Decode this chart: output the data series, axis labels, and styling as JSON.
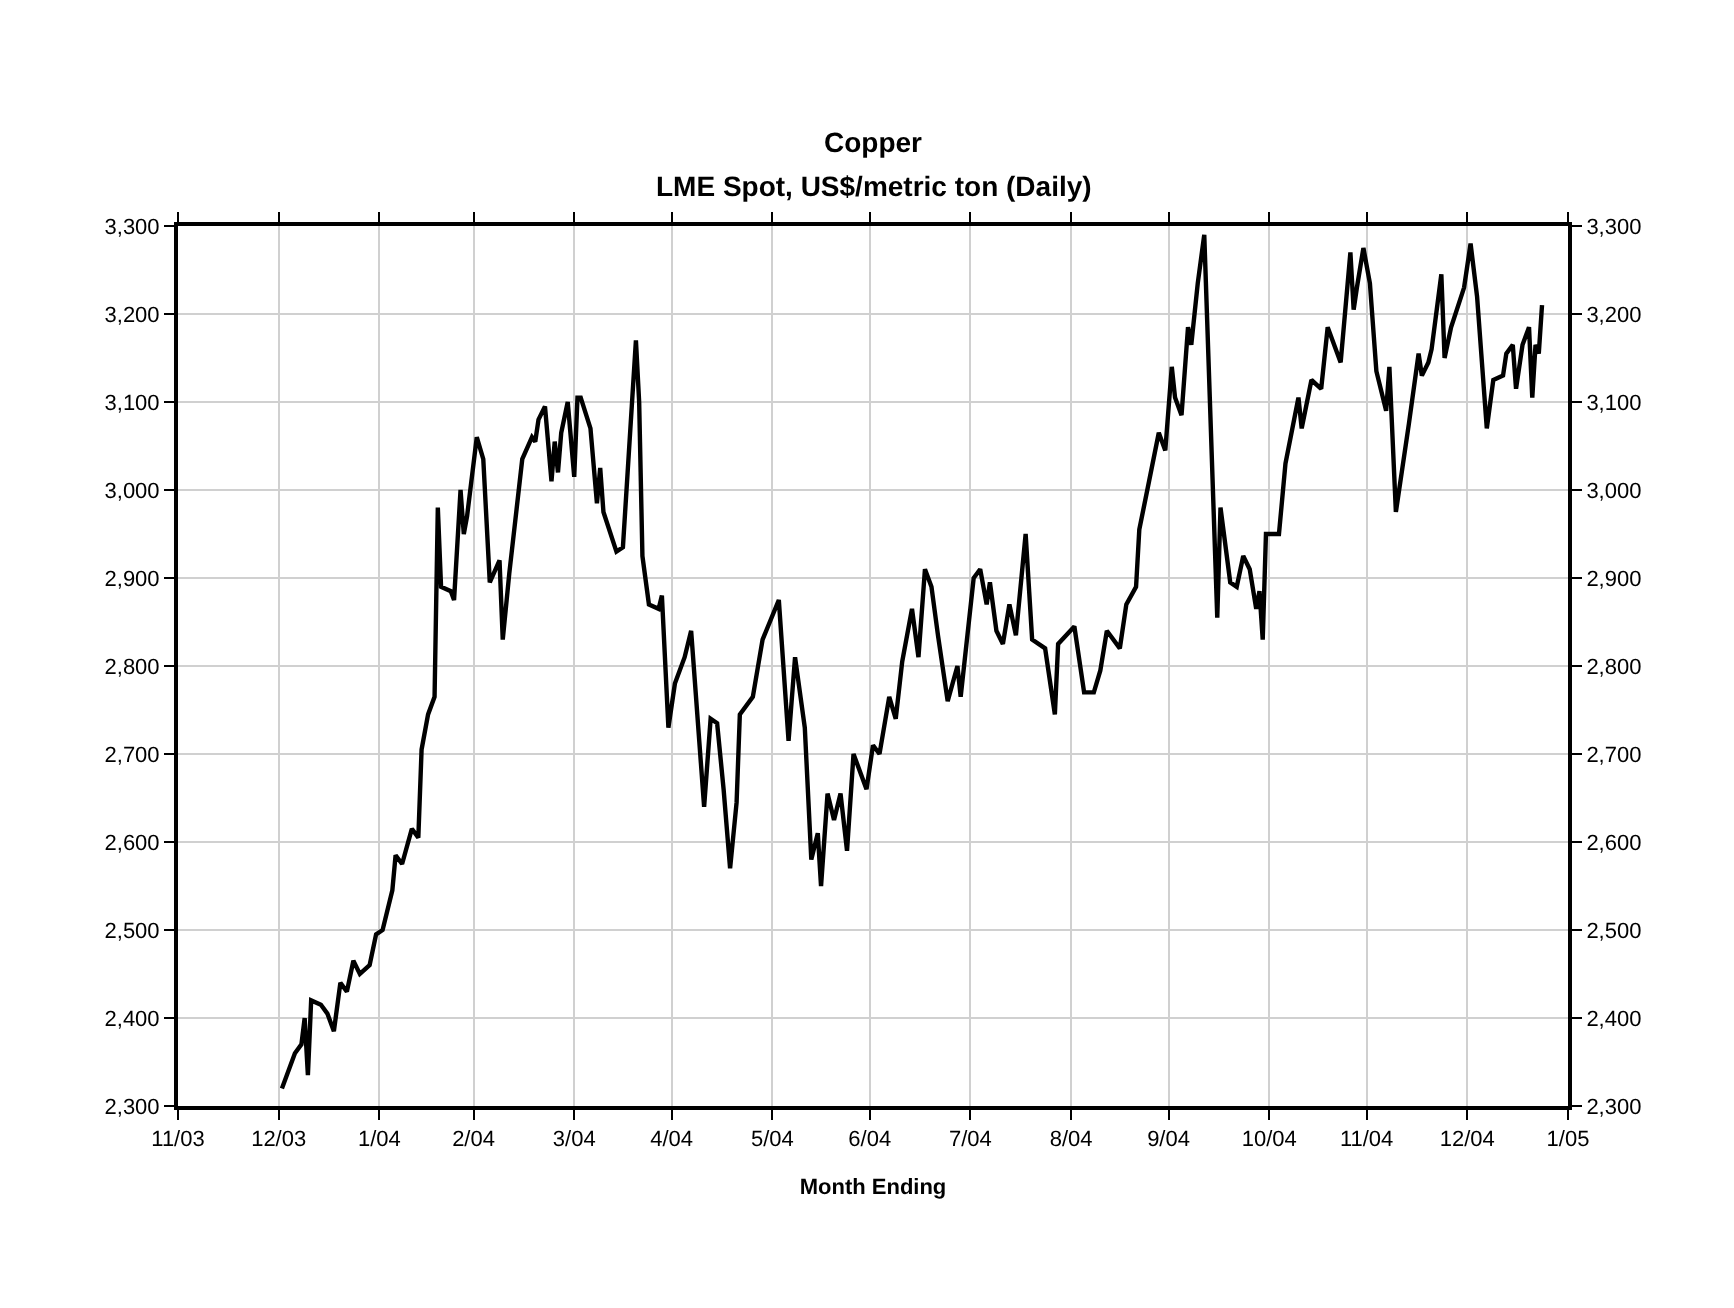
{
  "chart_data": {
    "type": "line",
    "title": "Copper",
    "subtitle": "LME Spot, US$/metric ton (Daily)",
    "xlabel": "Month Ending",
    "x": [
      "2004-01-01",
      "2004-01-05",
      "2004-01-07",
      "2004-01-08",
      "2004-01-09",
      "2004-01-10",
      "2004-01-13",
      "2004-01-15",
      "2004-01-17",
      "2004-01-19",
      "2004-01-21",
      "2004-01-23",
      "2004-01-25",
      "2004-01-28",
      "2004-01-30",
      "2004-02-01",
      "2004-02-04",
      "2004-02-05",
      "2004-02-07",
      "2004-02-10",
      "2004-02-12",
      "2004-02-13",
      "2004-02-15",
      "2004-02-17",
      "2004-02-18",
      "2004-02-19",
      "2004-02-22",
      "2004-02-23",
      "2004-02-25",
      "2004-02-26",
      "2004-02-27",
      "2004-03-01",
      "2004-03-03",
      "2004-03-05",
      "2004-03-08",
      "2004-03-09",
      "2004-03-11",
      "2004-03-15",
      "2004-03-18",
      "2004-03-19",
      "2004-03-20",
      "2004-03-22",
      "2004-03-24",
      "2004-03-25",
      "2004-03-26",
      "2004-03-27",
      "2004-03-29",
      "2004-03-31",
      "2004-04-01",
      "2004-04-02",
      "2004-04-05",
      "2004-04-07",
      "2004-04-08",
      "2004-04-09",
      "2004-04-13",
      "2004-04-15",
      "2004-04-19",
      "2004-04-20",
      "2004-04-21",
      "2004-04-23",
      "2004-04-26",
      "2004-04-27",
      "2004-04-29",
      "2004-05-01",
      "2004-05-04",
      "2004-05-06",
      "2004-05-10",
      "2004-05-12",
      "2004-05-14",
      "2004-05-16",
      "2004-05-18",
      "2004-05-20",
      "2004-05-21",
      "2004-05-25",
      "2004-05-28",
      "2004-06-02",
      "2004-06-05",
      "2004-06-07",
      "2004-06-10",
      "2004-06-12",
      "2004-06-14",
      "2004-06-15",
      "2004-06-17",
      "2004-06-19",
      "2004-06-21",
      "2004-06-23",
      "2004-06-25",
      "2004-06-29",
      "2004-07-01",
      "2004-07-03",
      "2004-07-06",
      "2004-07-08",
      "2004-07-10",
      "2004-07-13",
      "2004-07-15",
      "2004-07-17",
      "2004-07-19",
      "2004-07-21",
      "2004-07-24",
      "2004-07-27",
      "2004-07-28",
      "2004-08-01",
      "2004-08-03",
      "2004-08-05",
      "2004-08-06",
      "2004-08-08",
      "2004-08-10",
      "2004-08-12",
      "2004-08-14",
      "2004-08-17",
      "2004-08-19",
      "2004-08-23",
      "2004-08-26",
      "2004-08-27",
      "2004-09-01",
      "2004-09-04",
      "2004-09-07",
      "2004-09-09",
      "2004-09-11",
      "2004-09-15",
      "2004-09-17",
      "2004-09-20",
      "2004-09-21",
      "2004-09-24",
      "2004-09-27",
      "2004-09-29",
      "2004-10-01",
      "2004-10-02",
      "2004-10-04",
      "2004-10-06",
      "2004-10-07",
      "2004-10-09",
      "2004-10-11",
      "2004-10-15",
      "2004-10-16",
      "2004-10-19",
      "2004-10-21",
      "2004-10-23",
      "2004-10-25",
      "2004-10-27",
      "2004-10-28",
      "2004-10-29",
      "2004-10-30",
      "2004-11-03",
      "2004-11-05",
      "2004-11-09",
      "2004-11-10",
      "2004-11-13",
      "2004-11-16",
      "2004-11-18",
      "2004-11-22",
      "2004-11-25",
      "2004-11-26",
      "2004-11-27",
      "2004-11-29",
      "2004-12-01",
      "2004-12-03",
      "2004-12-06",
      "2004-12-07",
      "2004-12-09",
      "2004-12-13",
      "2004-12-16",
      "2004-12-17",
      "2004-12-19",
      "2004-12-20",
      "2004-12-23",
      "2004-12-24",
      "2004-12-26",
      "2004-12-30",
      "2005-01-01",
      "2005-01-03",
      "2005-01-06",
      "2005-01-08",
      "2005-01-11",
      "2005-01-12",
      "2005-01-14",
      "2005-01-15",
      "2005-01-17",
      "2005-01-19",
      "2005-01-20",
      "2005-01-21",
      "2005-01-22",
      "2005-01-23"
    ],
    "series": [
      {
        "color": "#000000",
        "values": [
          2320,
          2360,
          2370,
          2400,
          2335,
          2420,
          2415,
          2405,
          2385,
          2440,
          2430,
          2465,
          2450,
          2460,
          2495,
          2500,
          2545,
          2585,
          2575,
          2615,
          2605,
          2705,
          2745,
          2765,
          2980,
          2890,
          2885,
          2875,
          3000,
          2950,
          2970,
          3060,
          3035,
          2895,
          2920,
          2830,
          2905,
          3035,
          3060,
          3055,
          3080,
          3095,
          3010,
          3055,
          3020,
          3065,
          3100,
          3015,
          3105,
          3105,
          3070,
          2985,
          3025,
          2975,
          2930,
          2935,
          3170,
          3100,
          2925,
          2870,
          2865,
          2880,
          2730,
          2780,
          2810,
          2840,
          2640,
          2740,
          2735,
          2660,
          2570,
          2645,
          2745,
          2765,
          2830,
          2875,
          2715,
          2810,
          2730,
          2580,
          2610,
          2550,
          2655,
          2625,
          2655,
          2590,
          2700,
          2660,
          2710,
          2700,
          2765,
          2740,
          2805,
          2865,
          2810,
          2910,
          2890,
          2835,
          2760,
          2800,
          2765,
          2900,
          2910,
          2870,
          2895,
          2840,
          2825,
          2870,
          2835,
          2950,
          2830,
          2820,
          2745,
          2825,
          2845,
          2770,
          2770,
          2795,
          2840,
          2820,
          2870,
          2890,
          2955,
          3010,
          3065,
          3045,
          3140,
          3105,
          3085,
          3185,
          3165,
          3235,
          3290,
          2855,
          2980,
          2895,
          2890,
          2925,
          2910,
          2865,
          2885,
          2830,
          2950,
          2950,
          3030,
          3105,
          3070,
          3125,
          3115,
          3185,
          3145,
          3270,
          3205,
          3230,
          3275,
          3235,
          3135,
          3090,
          3140,
          2975,
          3075,
          3155,
          3130,
          3145,
          3160,
          3245,
          3150,
          3185,
          3230,
          3280,
          3220,
          3070,
          3125,
          3130,
          3155,
          3165,
          3115,
          3165,
          3185,
          3105,
          3165,
          3155,
          3210
        ]
      }
    ],
    "xlim": [
      "2003-11-30",
      "2005-01-31"
    ],
    "xticks": [
      {
        "value": "2003-11-30",
        "label": "11/03"
      },
      {
        "value": "2003-12-31",
        "label": "12/03"
      },
      {
        "value": "2004-01-31",
        "label": "1/04"
      },
      {
        "value": "2004-02-29",
        "label": "2/04"
      },
      {
        "value": "2004-03-31",
        "label": "3/04"
      },
      {
        "value": "2004-04-30",
        "label": "4/04"
      },
      {
        "value": "2004-05-31",
        "label": "5/04"
      },
      {
        "value": "2004-06-30",
        "label": "6/04"
      },
      {
        "value": "2004-07-31",
        "label": "7/04"
      },
      {
        "value": "2004-08-31",
        "label": "8/04"
      },
      {
        "value": "2004-09-30",
        "label": "9/04"
      },
      {
        "value": "2004-10-31",
        "label": "10/04"
      },
      {
        "value": "2004-11-30",
        "label": "11/04"
      },
      {
        "value": "2004-12-31",
        "label": "12/04"
      },
      {
        "value": "2005-01-31",
        "label": "1/05"
      }
    ],
    "ylim": [
      2300,
      3300
    ],
    "yticks": [
      {
        "value": 2300,
        "label": "2,300"
      },
      {
        "value": 2400,
        "label": "2,400"
      },
      {
        "value": 2500,
        "label": "2,500"
      },
      {
        "value": 2600,
        "label": "2,600"
      },
      {
        "value": 2700,
        "label": "2,700"
      },
      {
        "value": 2800,
        "label": "2,800"
      },
      {
        "value": 2900,
        "label": "2,900"
      },
      {
        "value": 3000,
        "label": "3,000"
      },
      {
        "value": 3100,
        "label": "3,100"
      },
      {
        "value": 3200,
        "label": "3,200"
      },
      {
        "value": 3300,
        "label": "3,300"
      }
    ],
    "y2lim": [
      2300,
      3300
    ],
    "y2ticks": [
      {
        "value": 2300,
        "label": "2,300"
      },
      {
        "value": 2400,
        "label": "2,400"
      },
      {
        "value": 2500,
        "label": "2,500"
      },
      {
        "value": 2600,
        "label": "2,600"
      },
      {
        "value": 2700,
        "label": "2,700"
      },
      {
        "value": 2800,
        "label": "2,800"
      },
      {
        "value": 2900,
        "label": "2,900"
      },
      {
        "value": 3000,
        "label": "3,000"
      },
      {
        "value": 3100,
        "label": "3,100"
      },
      {
        "value": 3200,
        "label": "3,200"
      },
      {
        "value": 3300,
        "label": "3,300"
      }
    ],
    "grid": true,
    "marker": "none",
    "line_style": "solid"
  }
}
